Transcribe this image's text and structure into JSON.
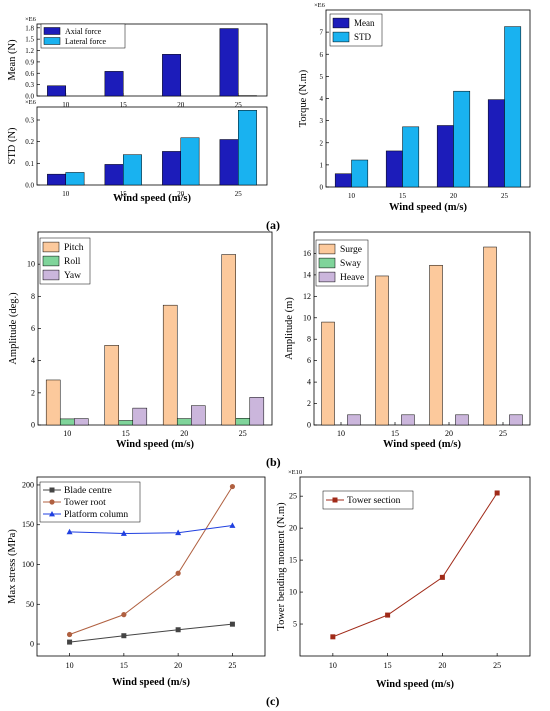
{
  "captions": {
    "a": "(a)",
    "b": "(b)",
    "c": "(c)"
  },
  "colors": {
    "dark_blue": "#1c1cba",
    "light_blue": "#19b2f0",
    "peach": "#fcc99c",
    "green": "#7fd49a",
    "lavender": "#cbb6dc",
    "gray": "#444444",
    "brown": "#b06040",
    "blue_line": "#2040e0",
    "dark_red": "#a02a18"
  },
  "chart_data": [
    {
      "id": "a-mean",
      "type": "bar",
      "categories": [
        "10",
        "15",
        "20",
        "25"
      ],
      "ylabel": "Mean (N)",
      "xlabel": "",
      "exponent": "×E6",
      "ylim": [
        0,
        1.9
      ],
      "yticks": [
        "0.0",
        "0.3",
        "0.6",
        "0.9",
        "1.2",
        "1.5",
        "1.8"
      ],
      "legend": "top-left",
      "series": [
        {
          "name": "Axial force",
          "values": [
            0.27,
            0.65,
            1.1,
            1.78
          ]
        },
        {
          "name": "Lateral force",
          "values": [
            0.0,
            0.0,
            0.0,
            0.01
          ]
        }
      ]
    },
    {
      "id": "a-std",
      "type": "bar",
      "categories": [
        "10",
        "15",
        "20",
        "25"
      ],
      "ylabel": "STD (N)",
      "xlabel": "Wind speed (m/s)",
      "exponent": "×E6",
      "ylim": [
        0,
        0.36
      ],
      "yticks": [
        "0.0",
        "0.1",
        "0.2",
        "0.3"
      ],
      "series": [
        {
          "name": "Axial force",
          "values": [
            0.05,
            0.095,
            0.155,
            0.21
          ]
        },
        {
          "name": "Lateral force",
          "values": [
            0.058,
            0.14,
            0.218,
            0.345
          ]
        }
      ]
    },
    {
      "id": "a-torque",
      "type": "bar",
      "categories": [
        "10",
        "15",
        "20",
        "25"
      ],
      "ylabel": "Torque (N.m)",
      "xlabel": "Wind speed (m/s)",
      "exponent": "×E6",
      "ylim": [
        0,
        8
      ],
      "yticks": [
        "0",
        "1",
        "2",
        "3",
        "4",
        "5",
        "6",
        "7"
      ],
      "legend": "top-left",
      "series": [
        {
          "name": "Mean",
          "values": [
            0.6,
            1.63,
            2.78,
            3.95
          ]
        },
        {
          "name": "STD",
          "values": [
            1.22,
            2.72,
            4.33,
            7.25
          ]
        }
      ]
    },
    {
      "id": "b-angular",
      "type": "bar",
      "categories": [
        "10",
        "15",
        "20",
        "25"
      ],
      "ylabel": "Amplitude (deg.)",
      "xlabel": "Wind speed (m/s)",
      "ylim": [
        0,
        12
      ],
      "yticks": [
        "0",
        "2",
        "4",
        "6",
        "8",
        "10"
      ],
      "legend": "top-left",
      "series": [
        {
          "name": "Pitch",
          "values": [
            2.8,
            4.95,
            7.45,
            10.6
          ]
        },
        {
          "name": "Roll",
          "values": [
            0.38,
            0.28,
            0.4,
            0.42
          ]
        },
        {
          "name": "Yaw",
          "values": [
            0.4,
            1.05,
            1.2,
            1.72
          ]
        }
      ]
    },
    {
      "id": "b-linear",
      "type": "bar",
      "categories": [
        "10",
        "15",
        "20",
        "25"
      ],
      "ylabel": "Amplitude (m)",
      "xlabel": "Wind speed (m/s)",
      "ylim": [
        0,
        18
      ],
      "yticks": [
        "0",
        "2",
        "4",
        "6",
        "8",
        "10",
        "12",
        "14",
        "16"
      ],
      "legend": "top-left",
      "series": [
        {
          "name": "Surge",
          "values": [
            9.6,
            13.9,
            14.9,
            16.6
          ]
        },
        {
          "name": "Sway",
          "values": [
            0,
            0,
            0,
            0
          ]
        },
        {
          "name": "Heave",
          "values": [
            0.95,
            0.95,
            0.95,
            0.95
          ]
        }
      ]
    },
    {
      "id": "c-stress",
      "type": "line",
      "x": [
        10,
        15,
        20,
        25
      ],
      "ylabel": "Max stress (MPa)",
      "xlabel": "Wind speed (m/s)",
      "xlim": [
        7,
        28
      ],
      "ylim": [
        -15,
        210
      ],
      "yticks": [
        "0",
        "50",
        "100",
        "150",
        "200"
      ],
      "xticks": [
        "10",
        "15",
        "20",
        "25"
      ],
      "legend": "top-left",
      "series": [
        {
          "name": "Blade centre",
          "values": [
            2.5,
            10.5,
            18,
            25
          ]
        },
        {
          "name": "Tower root",
          "values": [
            12,
            37,
            89,
            198
          ]
        },
        {
          "name": "Platform column",
          "values": [
            141,
            139,
            140,
            149
          ]
        }
      ]
    },
    {
      "id": "c-moment",
      "type": "line",
      "x": [
        10,
        15,
        20,
        25
      ],
      "ylabel": "Tower bending moment (N.m)",
      "xlabel": "Wind speed (m/s)",
      "exponent": "×E10",
      "xlim": [
        7,
        28
      ],
      "ylim": [
        0,
        28
      ],
      "yticks": [
        "5",
        "10",
        "15",
        "20",
        "25"
      ],
      "xticks": [
        "10",
        "15",
        "20",
        "25"
      ],
      "legend": "top-left",
      "series": [
        {
          "name": "Tower section",
          "values": [
            3,
            6.4,
            12.3,
            25.5
          ]
        }
      ]
    }
  ]
}
